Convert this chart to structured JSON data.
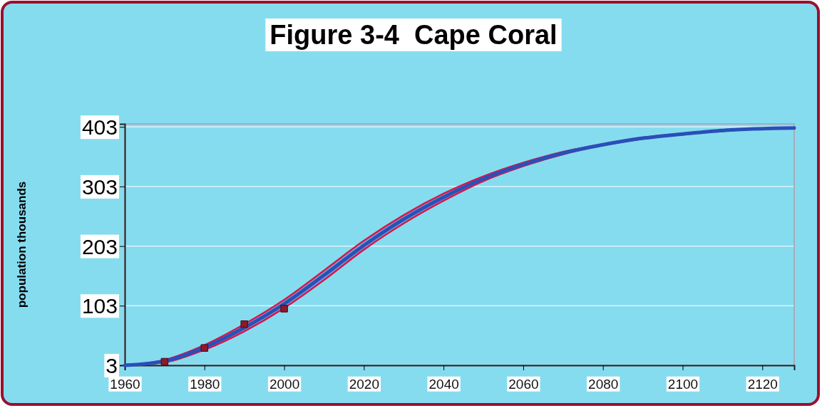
{
  "chart_data": {
    "type": "line",
    "title": "Figure 3-4  Cape Coral",
    "ylabel": "population thousands",
    "xlim": [
      1960,
      2128
    ],
    "xticks": [
      1960,
      1980,
      2000,
      2020,
      2040,
      2060,
      2080,
      2100,
      2120
    ],
    "ylim": [
      3,
      408
    ],
    "yticks": [
      3,
      103,
      203,
      303,
      403
    ],
    "grid": "y",
    "series": [
      {
        "color": "#2a4fb8",
        "x": [
          1960,
          1970,
          1980,
          1990,
          2000,
          2010,
          2020,
          2030,
          2040,
          2050,
          2060,
          2070,
          2080,
          2090,
          2100,
          2110,
          2128
        ],
        "values": [
          3,
          10,
          33,
          66,
          106,
          154,
          204,
          248,
          285,
          316,
          340,
          359,
          373,
          384,
          391,
          397,
          401
        ],
        "upper": [
          3,
          12,
          37,
          72,
          113,
          162,
          212,
          255,
          291,
          320,
          343,
          361,
          374,
          385,
          392,
          397,
          401
        ],
        "lower": [
          3,
          8,
          29,
          60,
          99,
          146,
          197,
          241,
          279,
          312,
          337,
          357,
          372,
          383,
          390,
          396,
          401
        ]
      },
      {
        "type": "scatter",
        "color": "#8b1a2a",
        "marker": "square",
        "x": [
          1970,
          1980,
          1990,
          2000
        ],
        "values": [
          9,
          32,
          72,
          98
        ]
      }
    ]
  }
}
